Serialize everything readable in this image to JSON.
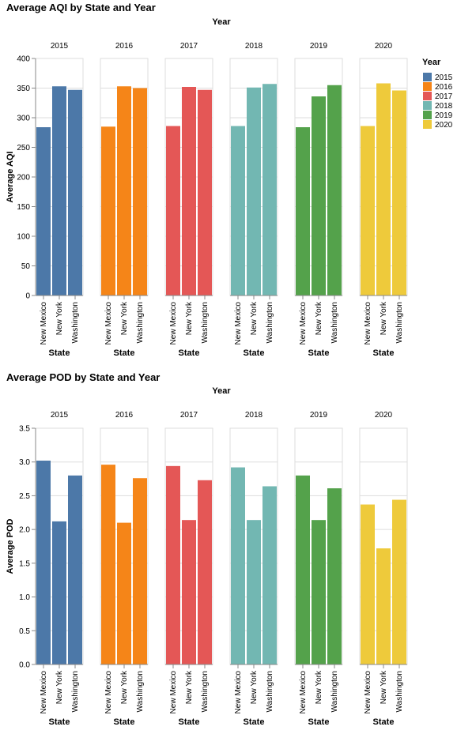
{
  "colors": {
    "2015": "#4c78a8",
    "2016": "#f58518",
    "2017": "#e45756",
    "2018": "#72b7b2",
    "2019": "#54a24b",
    "2020": "#eeca3b"
  },
  "legend": {
    "title": "Year",
    "items": [
      "2015",
      "2016",
      "2017",
      "2018",
      "2019",
      "2020"
    ]
  },
  "chart_data": [
    {
      "type": "bar",
      "title": "Average AQI by State and Year",
      "facet_title": "Year",
      "columns": [
        "2015",
        "2016",
        "2017",
        "2018",
        "2019",
        "2020"
      ],
      "categories": [
        "New Mexico",
        "New York",
        "Washington"
      ],
      "xlabel": "State",
      "ylabel": "Average AQI",
      "ylim": [
        0,
        400
      ],
      "yticks": [
        "0",
        "50",
        "100",
        "150",
        "200",
        "250",
        "300",
        "350",
        "400"
      ],
      "series": [
        {
          "name": "2015",
          "values": [
            284,
            353,
            347
          ]
        },
        {
          "name": "2016",
          "values": [
            285,
            353,
            350
          ]
        },
        {
          "name": "2017",
          "values": [
            286,
            352,
            347
          ]
        },
        {
          "name": "2018",
          "values": [
            286,
            351,
            357
          ]
        },
        {
          "name": "2019",
          "values": [
            284,
            336,
            355
          ]
        },
        {
          "name": "2020",
          "values": [
            286,
            358,
            346
          ]
        }
      ]
    },
    {
      "type": "bar",
      "title": "Average POD by State and Year",
      "facet_title": "Year",
      "columns": [
        "2015",
        "2016",
        "2017",
        "2018",
        "2019",
        "2020"
      ],
      "categories": [
        "New Mexico",
        "New York",
        "Washington"
      ],
      "xlabel": "State",
      "ylabel": "Average POD",
      "ylim": [
        0,
        3.5
      ],
      "yticks": [
        "0.0",
        "0.5",
        "1.0",
        "1.5",
        "2.0",
        "2.5",
        "3.0",
        "3.5"
      ],
      "series": [
        {
          "name": "2015",
          "values": [
            3.02,
            2.12,
            2.8
          ]
        },
        {
          "name": "2016",
          "values": [
            2.96,
            2.1,
            2.76
          ]
        },
        {
          "name": "2017",
          "values": [
            2.94,
            2.14,
            2.73
          ]
        },
        {
          "name": "2018",
          "values": [
            2.92,
            2.14,
            2.64
          ]
        },
        {
          "name": "2019",
          "values": [
            2.8,
            2.14,
            2.61
          ]
        },
        {
          "name": "2020",
          "values": [
            2.37,
            1.72,
            2.44
          ]
        }
      ]
    }
  ]
}
